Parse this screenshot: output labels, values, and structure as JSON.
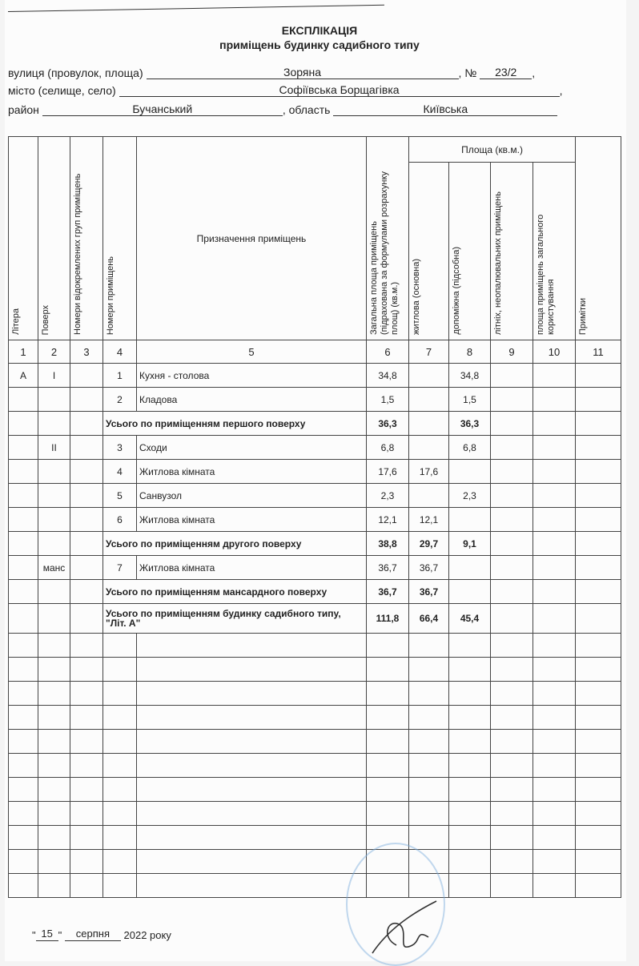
{
  "header": {
    "title": "ЕКСПЛІКАЦІЯ",
    "subtitle": "приміщень будинку садибного типу",
    "street_label": "вулиця (провулок, площа)",
    "street": "Зоряна",
    "number_label": "№",
    "number": "23/2",
    "city_label": "місто (селище, село)",
    "city": "Софіївська Борщагівка",
    "district_label": "район",
    "district": "Бучанський",
    "region_label": ", область",
    "region": "Київська"
  },
  "table": {
    "area_group": "Площа (кв.м.)",
    "columns": [
      "Літера",
      "Поверх",
      "Номери відокремлених груп приміщень",
      "Номери приміщень",
      "Призначення приміщень",
      "Загальна площа приміщень (підрахована за формулами розрахунку площ) (кв.м.)",
      "житлова (основна)",
      "допоміжна (підсобна)",
      "літніх, неопалювальних приміщень",
      "площа приміщень загального користування",
      "Примітки"
    ],
    "column_numbers": [
      "1",
      "2",
      "3",
      "4",
      "5",
      "6",
      "7",
      "8",
      "9",
      "10",
      "11"
    ],
    "rows": [
      {
        "litera": "А",
        "floor": "I",
        "group": "",
        "room": "1",
        "purpose": "Кухня - столова",
        "total": "34,8",
        "living": "",
        "aux": "34,8"
      },
      {
        "litera": "",
        "floor": "",
        "group": "",
        "room": "2",
        "purpose": "Кладова",
        "total": "1,5",
        "living": "",
        "aux": "1,5"
      },
      {
        "subtotal": "Усього по приміщенням першого поверху",
        "total": "36,3",
        "living": "",
        "aux": "36,3"
      },
      {
        "litera": "",
        "floor": "II",
        "group": "",
        "room": "3",
        "purpose": "Сходи",
        "total": "6,8",
        "living": "",
        "aux": "6,8"
      },
      {
        "litera": "",
        "floor": "",
        "group": "",
        "room": "4",
        "purpose": "Житлова кімната",
        "total": "17,6",
        "living": "17,6",
        "aux": ""
      },
      {
        "litera": "",
        "floor": "",
        "group": "",
        "room": "5",
        "purpose": "Санвузол",
        "total": "2,3",
        "living": "",
        "aux": "2,3"
      },
      {
        "litera": "",
        "floor": "",
        "group": "",
        "room": "6",
        "purpose": "Житлова кімната",
        "total": "12,1",
        "living": "12,1",
        "aux": ""
      },
      {
        "subtotal": "Усього по приміщенням другого поверху",
        "total": "38,8",
        "living": "29,7",
        "aux": "9,1"
      },
      {
        "litera": "",
        "floor": "манс",
        "group": "",
        "room": "7",
        "purpose": "Житлова кімната",
        "total": "36,7",
        "living": "36,7",
        "aux": ""
      },
      {
        "subtotal": "Усього по приміщенням мансардного поверху",
        "total": "36,7",
        "living": "36,7",
        "aux": ""
      },
      {
        "subtotal": "Усього по приміщенням будинку садибного типу, \"Літ. А\"",
        "total": "111,8",
        "living": "66,4",
        "aux": "45,4"
      }
    ]
  },
  "footer": {
    "day": "15",
    "month": "серпня",
    "year_text": "2022 року"
  }
}
